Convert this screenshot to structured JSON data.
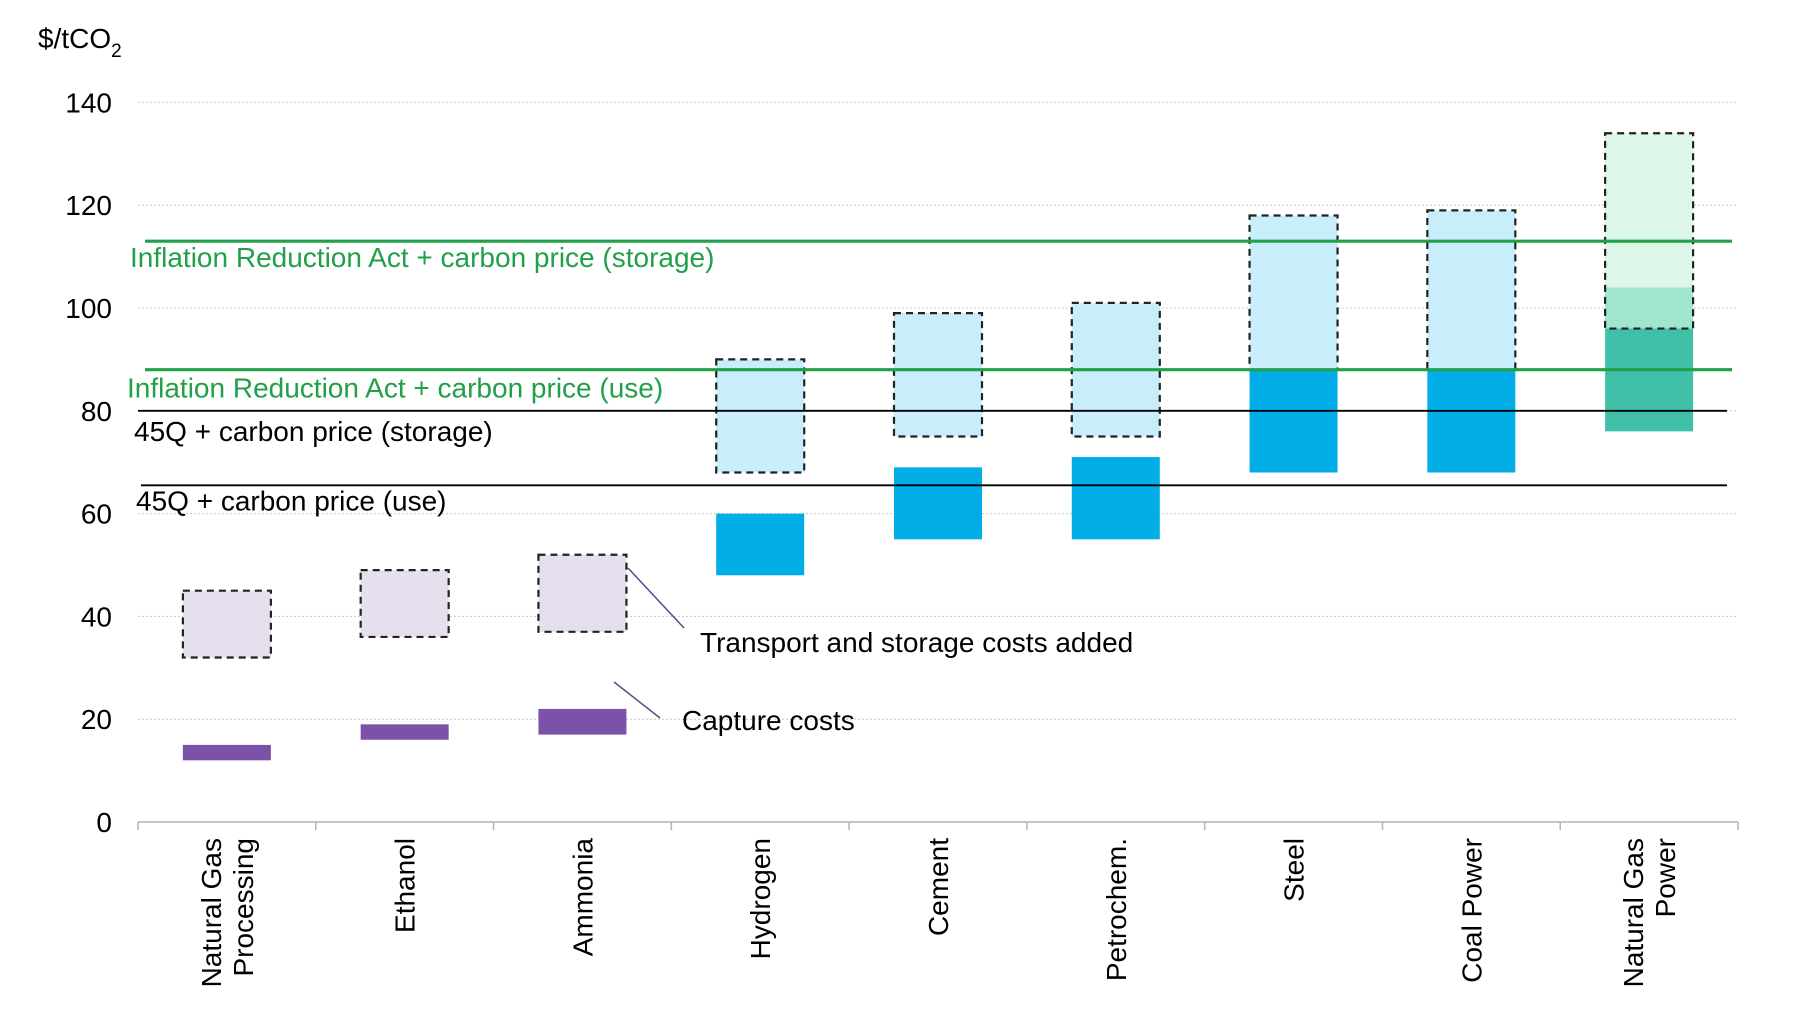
{
  "chart_data": {
    "type": "bar",
    "ylabel": "$/tCO",
    "ylabel_subscript": "2",
    "ylim": [
      0,
      140
    ],
    "yticks": [
      "0",
      "20",
      "40",
      "60",
      "80",
      "100",
      "120",
      "140"
    ],
    "grid": true,
    "categories": [
      [
        "Natural Gas",
        "Processing"
      ],
      [
        "Ethanol"
      ],
      [
        "Ammonia"
      ],
      [
        "Hydrogen"
      ],
      [
        "Cement"
      ],
      [
        "Petrochem."
      ],
      [
        "Steel"
      ],
      [
        "Coal Power"
      ],
      [
        "Natural Gas",
        "Power"
      ]
    ],
    "series": [
      {
        "name": "Capture costs",
        "ranges": [
          [
            12,
            15
          ],
          [
            16,
            19
          ],
          [
            17,
            22
          ],
          [
            48,
            60
          ],
          [
            55,
            69
          ],
          [
            55,
            71
          ],
          [
            68,
            88
          ],
          [
            68,
            88
          ],
          [
            76,
            96
          ]
        ]
      },
      {
        "name": "Transport and storage costs added",
        "ranges": [
          [
            32,
            45
          ],
          [
            36,
            49
          ],
          [
            37,
            52
          ],
          [
            68,
            90
          ],
          [
            75,
            99
          ],
          [
            75,
            101
          ],
          [
            88,
            118
          ],
          [
            88,
            119
          ],
          [
            96,
            134
          ]
        ]
      }
    ],
    "natural_gas_power_mid_band": [
      96,
      104
    ],
    "reference_lines": [
      {
        "label": "Inflation Reduction Act + carbon price (storage)",
        "value": 113,
        "color": "#21a049"
      },
      {
        "label": "Inflation Reduction Act + carbon price (use)",
        "value": 88,
        "color": "#21a049"
      },
      {
        "label": "45Q + carbon price (storage)",
        "value": 80,
        "color": "#000000"
      },
      {
        "label": "45Q + carbon price (use)",
        "value": 65.5,
        "color": "#000000"
      }
    ],
    "annotations": [
      "Transport and storage costs added",
      "Capture costs"
    ],
    "colors": {
      "capture_purple": "#7b52a8",
      "transport_purple": "#e6e0ee",
      "capture_blue": "#00ade6",
      "transport_blue": "#c8eefb",
      "capture_teal": "#40c0a8",
      "mid_teal": "#a0e6cf",
      "transport_teal": "#dcf7e7",
      "grid": "#c8c8c8",
      "axis": "#b4b4b4"
    }
  }
}
